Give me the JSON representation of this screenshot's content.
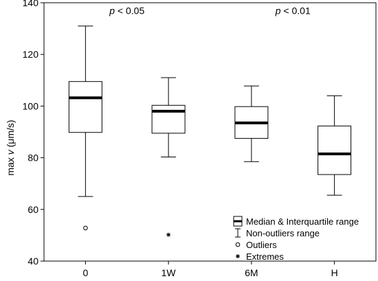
{
  "chart_data": {
    "type": "box",
    "ylabel_prefix": "max ",
    "ylabel_var": "v",
    "ylabel_unit": " (μm/s)",
    "categories": [
      "0",
      "1W",
      "6M",
      "H"
    ],
    "ylim": [
      40,
      140
    ],
    "yticks": [
      40,
      60,
      80,
      100,
      120,
      140
    ],
    "boxes": [
      {
        "category": "0",
        "whisker_low": 65.0,
        "q1": 89.8,
        "median": 103.2,
        "q3": 109.5,
        "whisker_high": 131.0
      },
      {
        "category": "1W",
        "whisker_low": 80.3,
        "q1": 89.5,
        "median": 98.0,
        "q3": 100.3,
        "whisker_high": 111.0
      },
      {
        "category": "6M",
        "whisker_low": 78.5,
        "q1": 87.5,
        "median": 93.5,
        "q3": 99.8,
        "whisker_high": 107.8
      },
      {
        "category": "H",
        "whisker_low": 65.5,
        "q1": 73.5,
        "median": 81.5,
        "q3": 92.3,
        "whisker_high": 104.0
      }
    ],
    "outliers": [
      {
        "category": "0",
        "value": 52.8
      }
    ],
    "extremes": [
      {
        "category": "1W",
        "value": 50.2
      }
    ],
    "annotations": [
      {
        "p_symbol": "p",
        "text": " < 0.05",
        "between": [
          "0",
          "1W"
        ],
        "y": 137
      },
      {
        "p_symbol": "p",
        "text": " < 0.01",
        "between": [
          "6M",
          "H"
        ],
        "y": 137
      }
    ],
    "legend": {
      "position": "bottom-right",
      "items": [
        "Median & Interquartile range",
        "Non-outliers range",
        "Outliers",
        "Extremes"
      ]
    },
    "grid": false
  }
}
